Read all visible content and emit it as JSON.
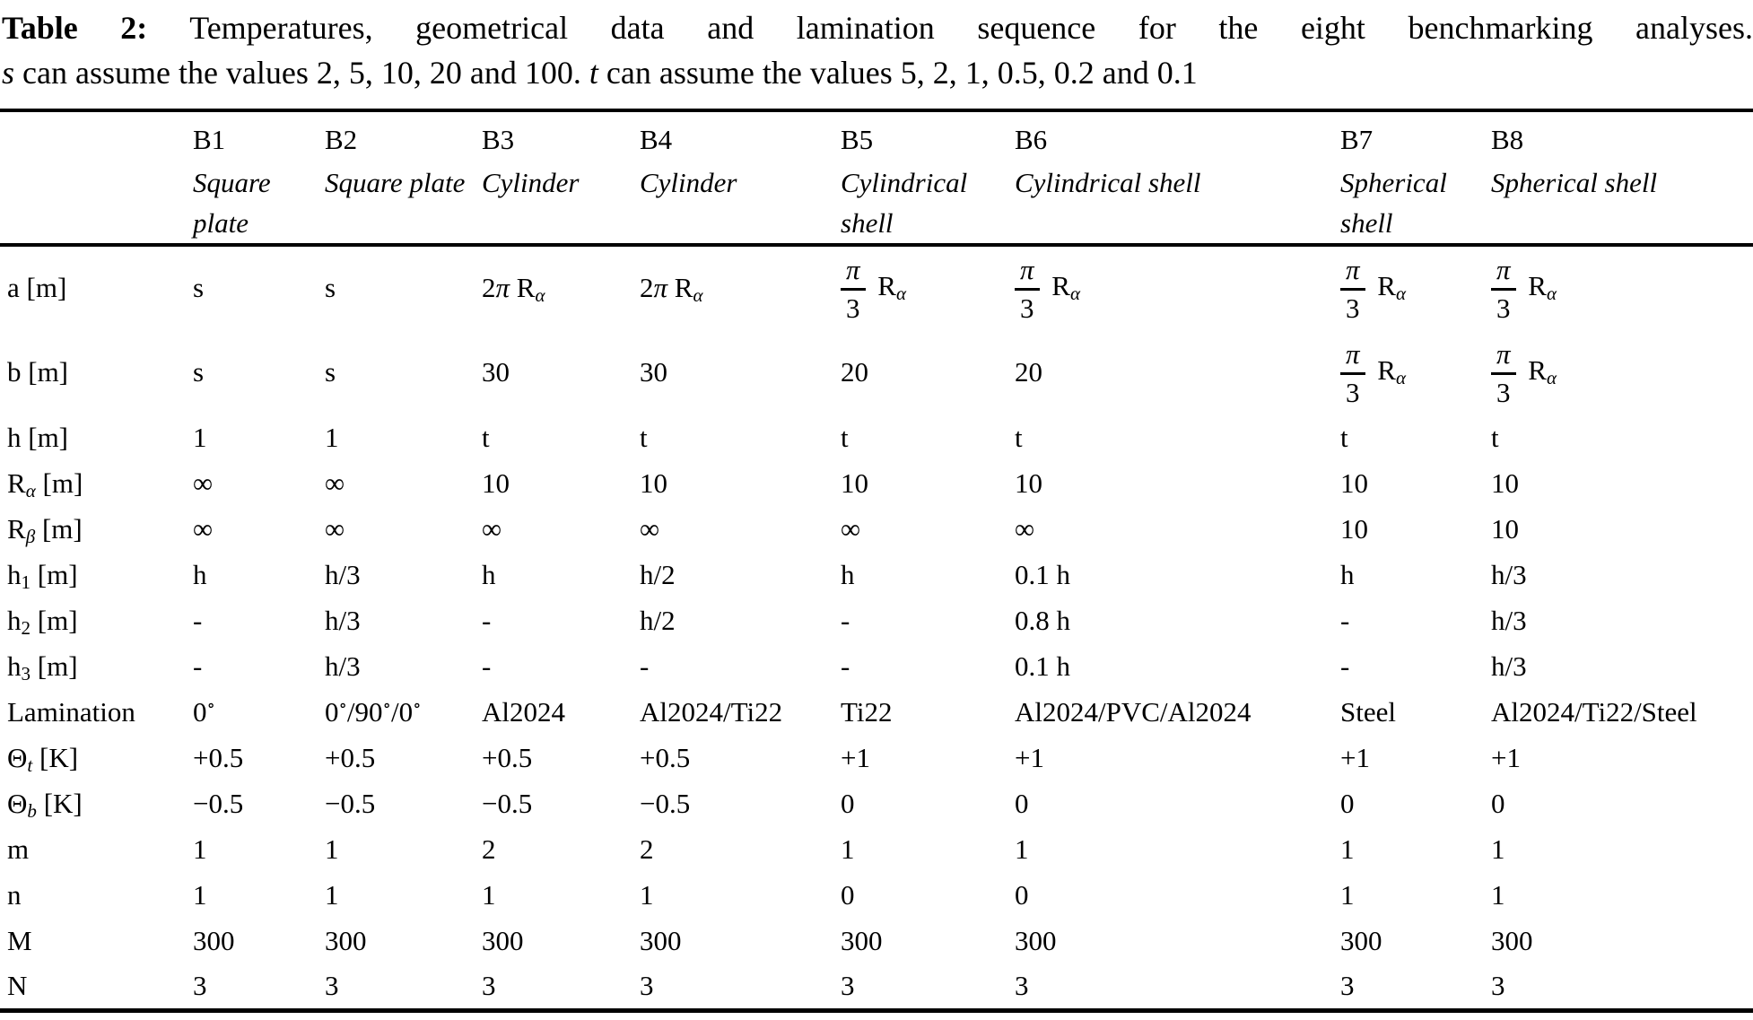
{
  "caption": {
    "line1": {
      "label": "Table 2:",
      "text": "Temperatures, geometrical data and lamination sequence for the eight benchmarking analyses."
    },
    "line2": {
      "s_var": "s",
      "text_after_s": " can assume the values 2, 5, 10, 20 and 100. ",
      "t_var": "t",
      "text_after_t": " can assume the values 5, 2, 1, 0.5, 0.2 and 0.1"
    }
  },
  "table": {
    "columns": [
      {
        "id": "B1",
        "desc": "Square plate"
      },
      {
        "id": "B2",
        "desc": "Square plate"
      },
      {
        "id": "B3",
        "desc": "Cylinder"
      },
      {
        "id": "B4",
        "desc": "Cylinder"
      },
      {
        "id": "B5",
        "desc": "Cylindrical shell"
      },
      {
        "id": "B6",
        "desc": "Cylindrical shell"
      },
      {
        "id": "B7",
        "desc": "Spherical shell"
      },
      {
        "id": "B8",
        "desc": "Spherical shell"
      }
    ],
    "rows": [
      {
        "label": "a [m]",
        "values": [
          "s",
          "s",
          "2*π* R_{*α*}",
          "2*π* R_{*α*}",
          "[[*π*/3]] R_{*α*}",
          "[[*π*/3]] R_{*α*}",
          "[[*π*/3]] R_{*α*}",
          "[[*π*/3]] R_{*α*}"
        ]
      },
      {
        "label": "b [m]",
        "values": [
          "s",
          "s",
          "30",
          "30",
          "20",
          "20",
          "[[*π*/3]] R_{*α*}",
          "[[*π*/3]] R_{*α*}"
        ]
      },
      {
        "label": "h [m]",
        "values": [
          "1",
          "1",
          "t",
          "t",
          "t",
          "t",
          "t",
          "t"
        ]
      },
      {
        "label": "R_{*α*} [m]",
        "values": [
          "∞",
          "∞",
          "10",
          "10",
          "10",
          "10",
          "10",
          "10"
        ]
      },
      {
        "label": "R_{*β*} [m]",
        "values": [
          "∞",
          "∞",
          "∞",
          "∞",
          "∞",
          "∞",
          "10",
          "10"
        ]
      },
      {
        "label": "h_{1} [m]",
        "values": [
          "h",
          "h/3",
          "h",
          "h/2",
          "h",
          "0.1 h",
          "h",
          "h/3"
        ]
      },
      {
        "label": "h_{2} [m]",
        "values": [
          "-",
          "h/3",
          "-",
          "h/2",
          "-",
          "0.8 h",
          "-",
          "h/3"
        ]
      },
      {
        "label": "h_{3} [m]",
        "values": [
          "-",
          "h/3",
          "-",
          "-",
          "-",
          "0.1 h",
          "-",
          "h/3"
        ]
      },
      {
        "label": "Lamination",
        "values": [
          "0^{∘}",
          "0^{∘}/90^{∘}/0^{∘}",
          "Al2024",
          "Al2024/Ti22",
          "Ti22",
          "Al2024/PVC/Al2024",
          "Steel",
          "Al2024/Ti22/Steel"
        ]
      },
      {
        "label": "Θ_{*t*} [K]",
        "values": [
          "+0.5",
          "+0.5",
          "+0.5",
          "+0.5",
          "+1",
          "+1",
          "+1",
          "+1"
        ]
      },
      {
        "label": "Θ_{*b*} [K]",
        "values": [
          "−0.5",
          "−0.5",
          "−0.5",
          "−0.5",
          "0",
          "0",
          "0",
          "0"
        ]
      },
      {
        "label": "m",
        "values": [
          "1",
          "1",
          "2",
          "2",
          "1",
          "1",
          "1",
          "1"
        ]
      },
      {
        "label": "n",
        "values": [
          "1",
          "1",
          "1",
          "1",
          "0",
          "0",
          "1",
          "1"
        ]
      },
      {
        "label": "M",
        "values": [
          "300",
          "300",
          "300",
          "300",
          "300",
          "300",
          "300",
          "300"
        ]
      },
      {
        "label": "N",
        "values": [
          "3",
          "3",
          "3",
          "3",
          "3",
          "3",
          "3",
          "3"
        ]
      }
    ]
  }
}
